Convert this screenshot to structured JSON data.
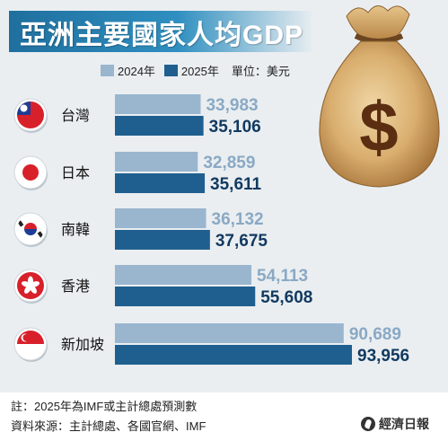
{
  "title": "亞洲主要國家人均GDP",
  "legend": {
    "label_2024": "2024年",
    "label_2025": "2025年",
    "unit": "單位：美元"
  },
  "colors": {
    "series_2024": "#9ab6cf",
    "series_2025": "#1f5f8f",
    "label_2024": "#8aa9c4",
    "label_2025": "#123a60"
  },
  "chart_data": {
    "type": "bar",
    "orientation": "horizontal",
    "title": "亞洲主要國家人均GDP",
    "unit": "單位：美元",
    "categories": [
      "台灣",
      "日本",
      "南韓",
      "香港",
      "新加坡"
    ],
    "series": [
      {
        "name": "2024年",
        "values": [
          33983,
          32859,
          36132,
          54113,
          90689
        ]
      },
      {
        "name": "2025年",
        "values": [
          35106,
          35611,
          37675,
          55608,
          93956
        ]
      }
    ],
    "value_labels": [
      [
        "33,983",
        "32,859",
        "36,132",
        "54,113",
        "90,689"
      ],
      [
        "35,106",
        "35,611",
        "37,675",
        "55,608",
        "93,956"
      ]
    ],
    "legend_position": "top",
    "grid": false,
    "flag_icons": [
      "taiwan-flag-icon",
      "japan-flag-icon",
      "south-korea-flag-icon",
      "hong-kong-flag-icon",
      "singapore-flag-icon"
    ]
  },
  "footer": {
    "note": "註：2025年為IMF或主計總處預測數",
    "source": "資料來源：主計總處、各國官網、IMF",
    "brand": "經濟日報"
  }
}
